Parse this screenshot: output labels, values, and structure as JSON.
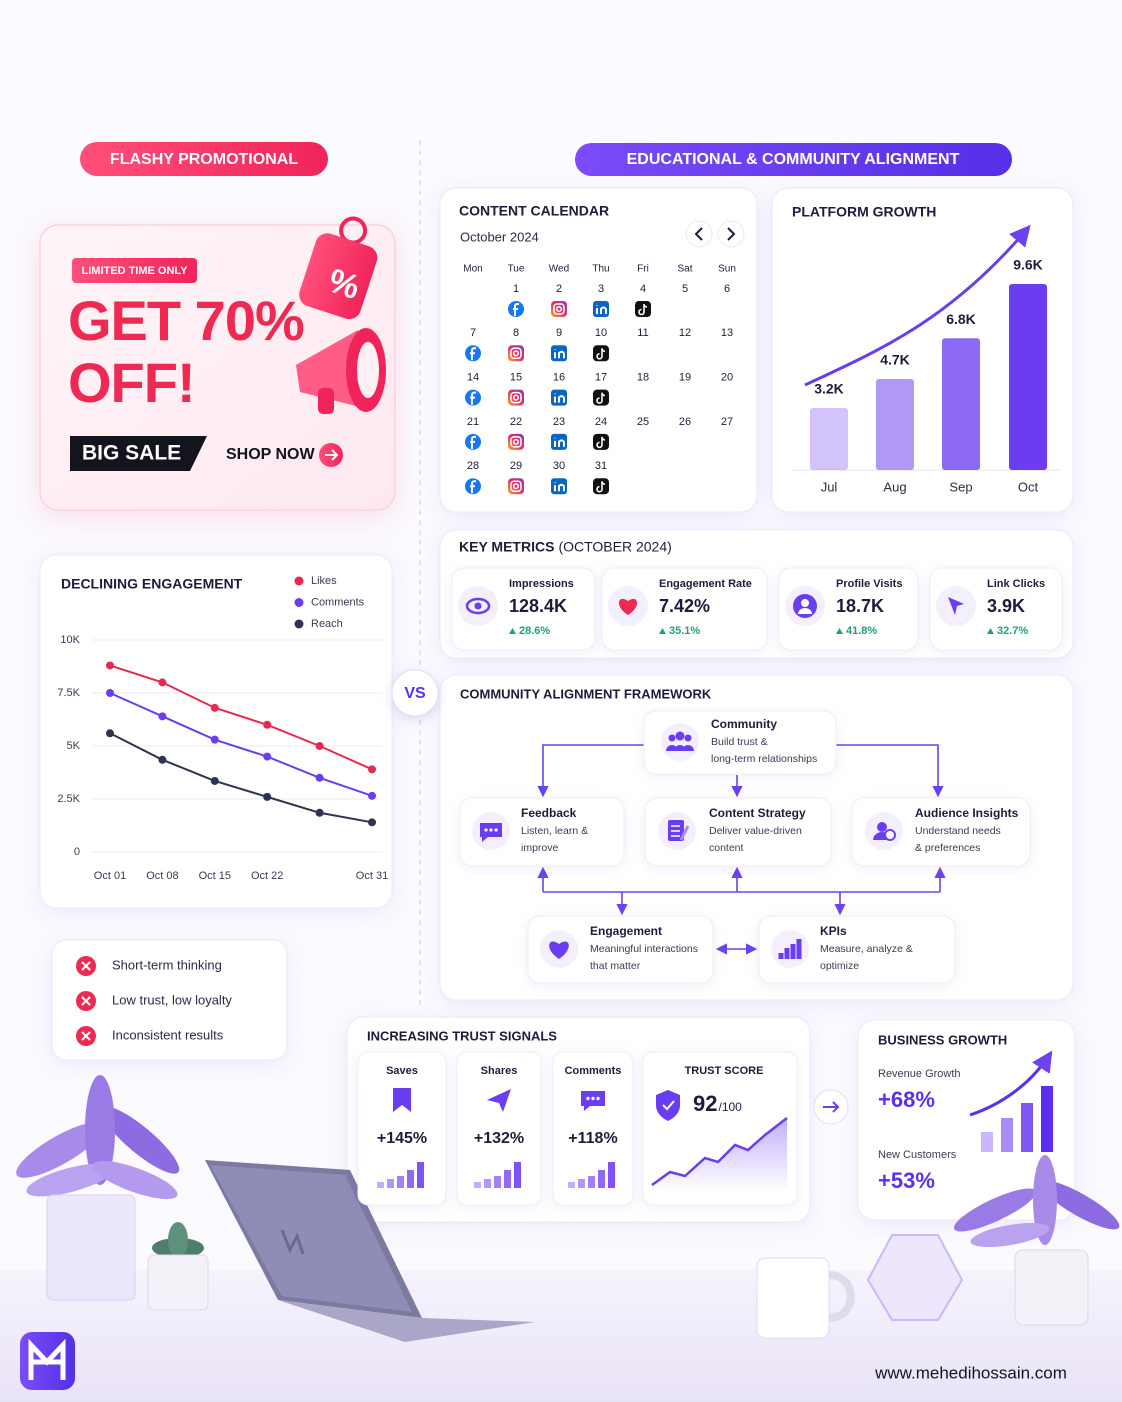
{
  "left_header": "FLASHY PROMOTIONAL",
  "right_header": "EDUCATIONAL & COMMUNITY ALIGNMENT",
  "promo": {
    "badge": "LIMITED TIME ONLY",
    "headline": [
      "GET 70%",
      "OFF!"
    ],
    "sale": "BIG SALE",
    "cta": "SHOP NOW",
    "tag": "%"
  },
  "vs": "VS",
  "negatives": [
    "Short-term thinking",
    "Low trust, low loyalty",
    "Inconsistent results"
  ],
  "calendar": {
    "title": "CONTENT CALENDAR",
    "month": "October 2024",
    "weekdays": [
      "Mon",
      "Tue",
      "Wed",
      "Thu",
      "Fri",
      "Sat",
      "Sun"
    ],
    "weeks": [
      [
        null,
        1,
        2,
        3,
        4,
        5,
        6
      ],
      [
        7,
        8,
        9,
        10,
        11,
        12,
        13
      ],
      [
        14,
        15,
        16,
        17,
        18,
        19,
        20
      ],
      [
        21,
        22,
        23,
        24,
        25,
        26,
        27
      ],
      [
        28,
        29,
        30,
        31,
        null,
        null,
        null
      ]
    ]
  },
  "chart_data": [
    {
      "type": "line",
      "title": "DECLINING ENGAGEMENT",
      "categories": [
        "Oct 01",
        "Oct 08",
        "Oct 15",
        "Oct 22",
        null,
        "Oct 31"
      ],
      "series": [
        {
          "name": "Likes",
          "color": "#e8294f",
          "values": [
            8800,
            8000,
            6800,
            6000,
            5000,
            3900
          ]
        },
        {
          "name": "Comments",
          "color": "#6a3df0",
          "values": [
            7500,
            6400,
            5300,
            4500,
            3500,
            2650
          ]
        },
        {
          "name": "Reach",
          "color": "#2e3350",
          "values": [
            5600,
            4350,
            3350,
            2600,
            1850,
            1400
          ]
        }
      ],
      "ylim": [
        0,
        10000
      ],
      "yticks": [
        0,
        {
          "value": 2500,
          "label": "2.5K"
        },
        {
          "value": 5000,
          "label": "5K"
        },
        {
          "value": 7500,
          "label": "7.5K"
        },
        {
          "value": 10000,
          "label": "10K"
        }
      ],
      "grid": true
    },
    {
      "type": "bar",
      "title": "PLATFORM GROWTH",
      "categories": [
        "Jul",
        "Aug",
        "Sep",
        "Oct"
      ],
      "values": [
        3200,
        4700,
        6800,
        9600
      ],
      "value_labels": [
        "3.2K",
        "4.7K",
        "6.8K",
        "9.6K"
      ],
      "color": "#6a3df0"
    }
  ],
  "key_metrics": {
    "title": "KEY METRICS",
    "period": "(OCTOBER 2024)",
    "items": [
      {
        "label": "Impressions",
        "value": "128.4K",
        "change": "28.6%"
      },
      {
        "label": "Engagement Rate",
        "value": "7.42%",
        "change": "35.1%"
      },
      {
        "label": "Profile Visits",
        "value": "18.7K",
        "change": "41.8%"
      },
      {
        "label": "Link Clicks",
        "value": "3.9K",
        "change": "32.7%"
      }
    ]
  },
  "framework": {
    "title": "COMMUNITY ALIGNMENT FRAMEWORK",
    "nodes": [
      {
        "title": "Community",
        "desc": [
          "Build trust &",
          "long-term relationships"
        ]
      },
      {
        "title": "Feedback",
        "desc": [
          "Listen, learn &",
          "improve"
        ]
      },
      {
        "title": "Content Strategy",
        "desc": [
          "Deliver value-driven",
          "content"
        ]
      },
      {
        "title": "Audience Insights",
        "desc": [
          "Understand needs",
          "& preferences"
        ]
      },
      {
        "title": "Engagement",
        "desc": [
          "Meaningful interactions",
          "that matter"
        ]
      },
      {
        "title": "KPIs",
        "desc": [
          "Measure, analyze &",
          "optimize"
        ]
      }
    ]
  },
  "trust": {
    "title": "INCREASING TRUST SIGNALS",
    "items": [
      {
        "label": "Saves",
        "value": "+145%"
      },
      {
        "label": "Shares",
        "value": "+132%"
      },
      {
        "label": "Comments",
        "value": "+118%"
      }
    ],
    "score_label": "TRUST SCORE",
    "score": 92,
    "score_max": "/100"
  },
  "business": {
    "title": "BUSINESS GROWTH",
    "items": [
      {
        "label": "Revenue Growth",
        "value": "+68%"
      },
      {
        "label": "New Customers",
        "value": "+53%"
      }
    ]
  },
  "website": "www.mehedihossain.com"
}
